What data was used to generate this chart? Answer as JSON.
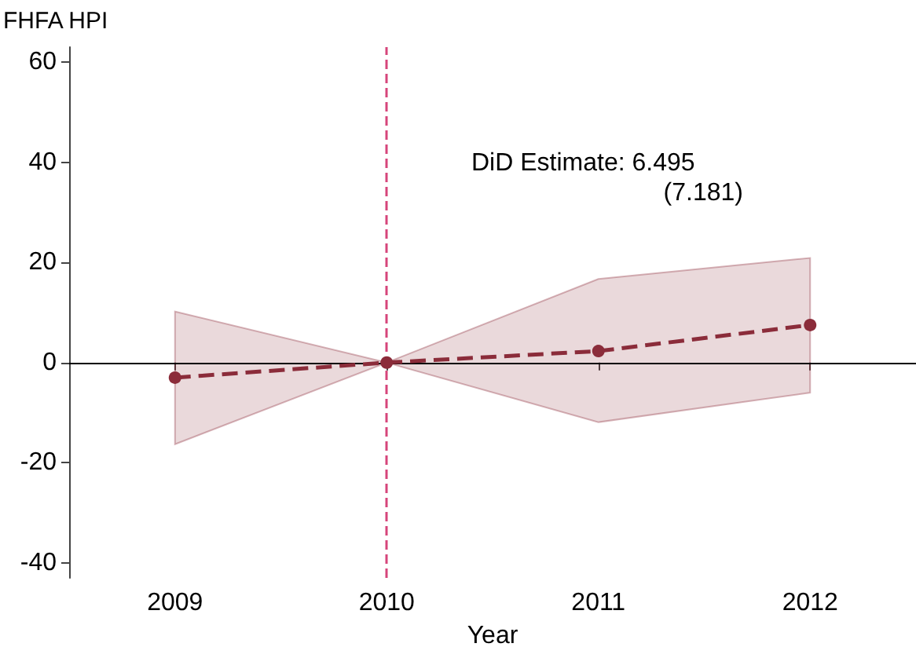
{
  "chart_data": {
    "type": "line",
    "ylabel": "FHFA HPI",
    "xlabel": "Year",
    "x": [
      2009,
      2010,
      2011,
      2012
    ],
    "series": [
      {
        "color": "#8b2c3a",
        "values": [
          -3.0,
          0,
          2.3,
          7.5
        ],
        "lower": [
          -16.3,
          0,
          -11.9,
          -6.0
        ],
        "upper": [
          10.2,
          0,
          16.7,
          20.9
        ]
      }
    ],
    "xlim": [
      2008.5,
      2012.5
    ],
    "xticks": [
      2009,
      2010,
      2011,
      2012
    ],
    "ylim": [
      -43,
      63
    ],
    "yticks": [
      -40,
      -20,
      0,
      20,
      40,
      60
    ],
    "ref_lines": [
      {
        "axis": "y",
        "value": 0,
        "color": "#000000",
        "line_style": "solid"
      },
      {
        "axis": "x",
        "value": 2010,
        "color": "#d6457a",
        "line_style": "dashed"
      }
    ],
    "annotations": [
      "DiD Estimate: 6.495",
      "(7.181)"
    ],
    "grid": false,
    "marker": "circle",
    "line_style": "dashed"
  }
}
